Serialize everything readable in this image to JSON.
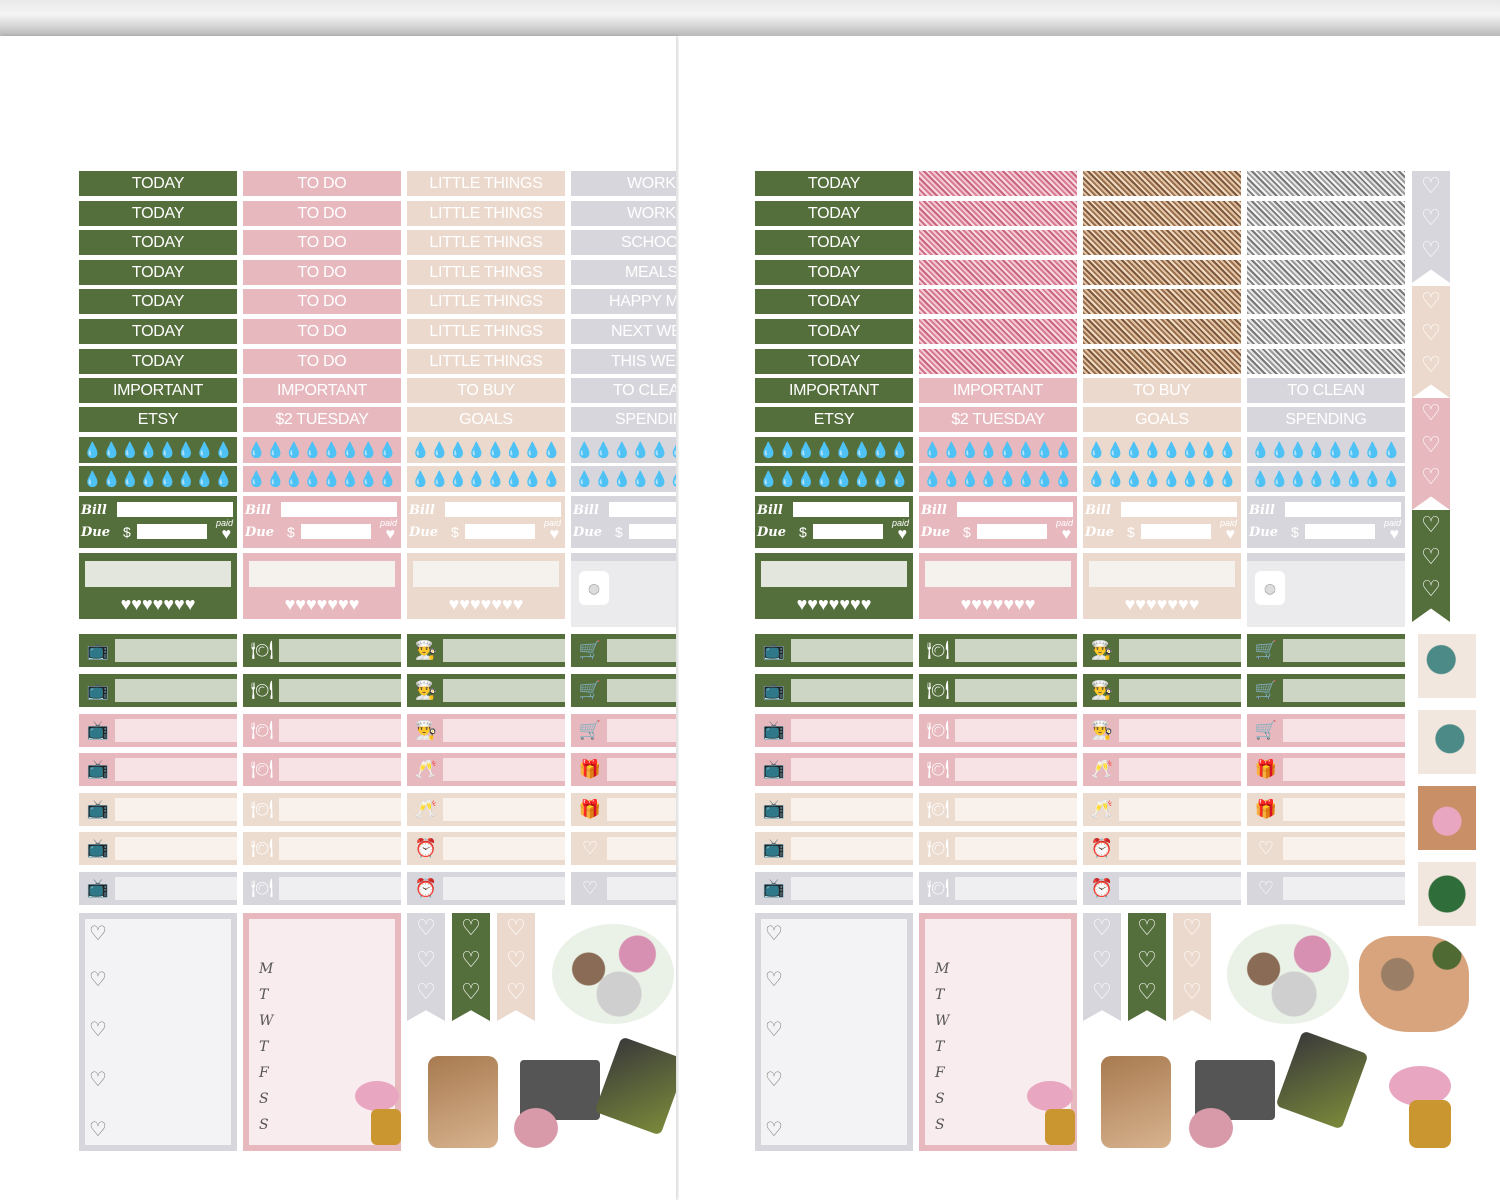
{
  "labels": {
    "today": "TODAY",
    "to_do": "TO DO",
    "little_things": "LITTLE THINGS",
    "important": "IMPORTANT",
    "etsy": "ETSY",
    "two_tuesday": "$2 TUESDAY",
    "to_buy": "TO BUY",
    "goals": "GOALS",
    "to_clean": "TO CLEAN",
    "spending": "SPENDING",
    "work": "WORK",
    "school": "SCHOO",
    "meals": "MEALS",
    "happy": "HAPPY M",
    "next_week": "NEXT WE",
    "this_week": "THIS WEE",
    "to_clean_cut": "TO CLEA",
    "spending_cut": "SPENDIN"
  },
  "bill": {
    "bill": "Bill",
    "due": "Due",
    "dollar": "$",
    "paid": "paid"
  },
  "weekdays": [
    "M",
    "T",
    "W",
    "T",
    "F",
    "S",
    "S"
  ],
  "icons": {
    "water": "water-drop-icon",
    "heart": "heart-icon",
    "tv": "tv-icon",
    "dining": "plate-fork-knife-icon",
    "chef": "cooking-icon",
    "cart": "shopping-cart-icon",
    "gift": "gift-icon",
    "cheers": "champagne-glasses-icon",
    "clock": "alarm-clock-icon",
    "scale": "scale-icon"
  },
  "colors": {
    "green": "#556f3c",
    "pink": "#e7b9bf",
    "beige": "#ecd9cd",
    "gray": "#d6d6dc"
  }
}
